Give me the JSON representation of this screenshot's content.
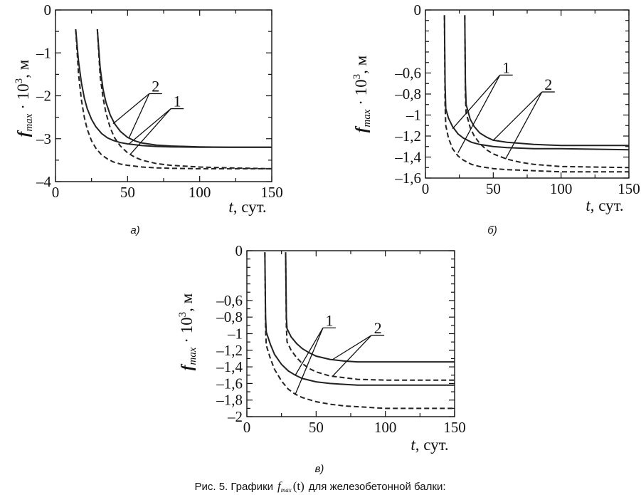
{
  "caption": {
    "prefix": "Рис. 5. Графики",
    "f": "f",
    "sub": "max",
    "arg": "(t)",
    "suffix": "для железобетонной балки:"
  },
  "chart_data": [
    {
      "id": "a",
      "type": "line",
      "panel_label": "а)",
      "xlabel_var": "t",
      "xlabel_unit": ", сут.",
      "ylabel_f": "f",
      "ylabel_sub": "max",
      "ylabel_rest": " · 10",
      "ylabel_sup": "3",
      "ylabel_unit": ", м",
      "xlim": [
        0,
        150
      ],
      "ylim": [
        -4,
        0
      ],
      "xticks": [
        0,
        50,
        100,
        150
      ],
      "yticks": [
        0,
        -1,
        -2,
        -3,
        -4
      ],
      "ytick_labels": [
        "0",
        "–1",
        "–2",
        "–3",
        "–4"
      ],
      "series": [
        {
          "style": "solid",
          "x": [
            14,
            16,
            18,
            20,
            22,
            25,
            28,
            32,
            36,
            40,
            45,
            50,
            60,
            70,
            80,
            100,
            120,
            150
          ],
          "y": [
            -0.45,
            -1.2,
            -1.7,
            -2.05,
            -2.3,
            -2.55,
            -2.72,
            -2.88,
            -2.98,
            -3.04,
            -3.09,
            -3.12,
            -3.16,
            -3.18,
            -3.19,
            -3.2,
            -3.2,
            -3.2
          ]
        },
        {
          "style": "dashed",
          "x": [
            14,
            16,
            18,
            20,
            22,
            25,
            28,
            32,
            36,
            40,
            45,
            50,
            60,
            70,
            80,
            100,
            120,
            150
          ],
          "y": [
            -0.45,
            -1.5,
            -2.1,
            -2.5,
            -2.78,
            -3.05,
            -3.22,
            -3.38,
            -3.47,
            -3.54,
            -3.59,
            -3.62,
            -3.66,
            -3.68,
            -3.69,
            -3.7,
            -3.7,
            -3.7
          ]
        },
        {
          "style": "solid",
          "x": [
            29,
            31,
            33,
            35,
            38,
            41,
            45,
            50,
            55,
            60,
            70,
            80,
            100,
            120,
            150
          ],
          "y": [
            -0.45,
            -1.35,
            -1.85,
            -2.15,
            -2.45,
            -2.65,
            -2.83,
            -2.97,
            -3.05,
            -3.1,
            -3.15,
            -3.17,
            -3.19,
            -3.2,
            -3.2
          ]
        },
        {
          "style": "dashed",
          "x": [
            29,
            31,
            33,
            35,
            38,
            41,
            45,
            50,
            55,
            60,
            70,
            80,
            100,
            120,
            150
          ],
          "y": [
            -0.45,
            -1.55,
            -2.05,
            -2.4,
            -2.75,
            -2.98,
            -3.17,
            -3.33,
            -3.43,
            -3.5,
            -3.58,
            -3.62,
            -3.66,
            -3.68,
            -3.7
          ]
        }
      ],
      "labels": [
        {
          "text": "2",
          "x": 67,
          "y": -1.95,
          "targets": [
            [
              40,
              -2.65
            ],
            [
              51,
              -2.98
            ]
          ]
        },
        {
          "text": "1",
          "x": 82,
          "y": -2.3,
          "targets": [
            [
              51,
              -3.12
            ],
            [
              52,
              -3.36
            ]
          ]
        }
      ]
    },
    {
      "id": "b",
      "type": "line",
      "panel_label": "б)",
      "xlabel_var": "t",
      "xlabel_unit": ", сут.",
      "ylabel_f": "f",
      "ylabel_sub": "max",
      "ylabel_rest": " · 10",
      "ylabel_sup": "3",
      "ylabel_unit": ", м",
      "xlim": [
        0,
        150
      ],
      "ylim": [
        -1.6,
        0
      ],
      "xticks": [
        0,
        50,
        100,
        150
      ],
      "yticks": [
        0,
        -0.6,
        -0.8,
        -1,
        -1.2,
        -1.4,
        -1.6
      ],
      "ytick_labels": [
        "0",
        "–0,6",
        "–0,8",
        "–1",
        "–1,2",
        "–1,4",
        "–1,6"
      ],
      "series": [
        {
          "style": "solid",
          "x": [
            14,
            14.5,
            15,
            17,
            20,
            24,
            28,
            34,
            40,
            50,
            60,
            80,
            100,
            150
          ],
          "y": [
            -0.05,
            -0.7,
            -0.94,
            -1.03,
            -1.11,
            -1.18,
            -1.22,
            -1.26,
            -1.28,
            -1.3,
            -1.31,
            -1.32,
            -1.32,
            -1.33
          ]
        },
        {
          "style": "dashed",
          "x": [
            14,
            14.5,
            15,
            17,
            20,
            24,
            28,
            34,
            40,
            50,
            60,
            80,
            100,
            150
          ],
          "y": [
            -0.05,
            -0.9,
            -1.1,
            -1.22,
            -1.32,
            -1.39,
            -1.43,
            -1.47,
            -1.49,
            -1.51,
            -1.52,
            -1.53,
            -1.54,
            -1.54
          ]
        },
        {
          "style": "solid",
          "x": [
            29,
            29.5,
            30,
            33,
            36,
            40,
            45,
            50,
            60,
            70,
            80,
            100,
            150
          ],
          "y": [
            -0.05,
            -0.7,
            -0.9,
            -1.04,
            -1.11,
            -1.17,
            -1.21,
            -1.24,
            -1.26,
            -1.27,
            -1.28,
            -1.29,
            -1.29
          ]
        },
        {
          "style": "dashed",
          "x": [
            29,
            29.5,
            30,
            33,
            36,
            40,
            45,
            50,
            60,
            70,
            80,
            100,
            150
          ],
          "y": [
            -0.05,
            -0.82,
            -0.98,
            -1.12,
            -1.2,
            -1.27,
            -1.33,
            -1.37,
            -1.42,
            -1.45,
            -1.47,
            -1.49,
            -1.5
          ]
        }
      ],
      "labels": [
        {
          "text": "1",
          "x": 57,
          "y": -0.62,
          "targets": [
            [
              20,
              -1.13
            ],
            [
              24,
              -1.36
            ]
          ]
        },
        {
          "text": "2",
          "x": 88,
          "y": -0.78,
          "targets": [
            [
              50,
              -1.24
            ],
            [
              59,
              -1.42
            ]
          ]
        }
      ]
    },
    {
      "id": "c",
      "type": "line",
      "panel_label": "в)",
      "xlabel_var": "t",
      "xlabel_unit": ", сут.",
      "ylabel_f": "f",
      "ylabel_sub": "max",
      "ylabel_rest": " · 10",
      "ylabel_sup": "3",
      "ylabel_unit": ", м",
      "xlim": [
        0,
        150
      ],
      "ylim": [
        -2,
        0
      ],
      "xticks": [
        0,
        50,
        100,
        150
      ],
      "yticks": [
        0,
        -0.6,
        -0.8,
        -1,
        -1.2,
        -1.4,
        -1.6,
        -1.8,
        -2
      ],
      "ytick_labels": [
        "0",
        "–0,6",
        "–0,8",
        "–1",
        "–1,2",
        "–1,4",
        "–1,6",
        "–1,8",
        "–2"
      ],
      "series": [
        {
          "style": "solid",
          "x": [
            13,
            13.5,
            14,
            17,
            20,
            25,
            30,
            35,
            40,
            50,
            60,
            70,
            80,
            100,
            150
          ],
          "y": [
            -0.02,
            -0.8,
            -0.98,
            -1.13,
            -1.25,
            -1.37,
            -1.45,
            -1.5,
            -1.54,
            -1.58,
            -1.6,
            -1.61,
            -1.62,
            -1.62,
            -1.62
          ]
        },
        {
          "style": "dashed",
          "x": [
            13,
            13.5,
            14,
            17,
            20,
            25,
            30,
            35,
            40,
            50,
            60,
            70,
            80,
            100,
            150
          ],
          "y": [
            -0.02,
            -0.95,
            -1.14,
            -1.3,
            -1.43,
            -1.57,
            -1.67,
            -1.73,
            -1.77,
            -1.82,
            -1.85,
            -1.87,
            -1.88,
            -1.9,
            -1.9
          ]
        },
        {
          "style": "solid",
          "x": [
            28,
            28.5,
            29,
            32,
            36,
            40,
            45,
            50,
            60,
            70,
            80,
            100,
            150
          ],
          "y": [
            -0.02,
            -0.8,
            -0.94,
            -1.04,
            -1.12,
            -1.18,
            -1.23,
            -1.27,
            -1.31,
            -1.33,
            -1.34,
            -1.34,
            -1.34
          ]
        },
        {
          "style": "dashed",
          "x": [
            28,
            28.5,
            29,
            32,
            36,
            40,
            45,
            50,
            60,
            70,
            80,
            100,
            150
          ],
          "y": [
            -0.02,
            -0.92,
            -1.1,
            -1.2,
            -1.29,
            -1.36,
            -1.42,
            -1.46,
            -1.51,
            -1.53,
            -1.55,
            -1.56,
            -1.56
          ]
        }
      ],
      "labels": [
        {
          "text": "1",
          "x": 57,
          "y": -0.93,
          "targets": [
            [
              35,
              -1.5
            ],
            [
              35,
              -1.73
            ]
          ]
        },
        {
          "text": "2",
          "x": 92,
          "y": -1.02,
          "targets": [
            [
              62,
              -1.31
            ],
            [
              62,
              -1.51
            ]
          ]
        }
      ]
    }
  ]
}
